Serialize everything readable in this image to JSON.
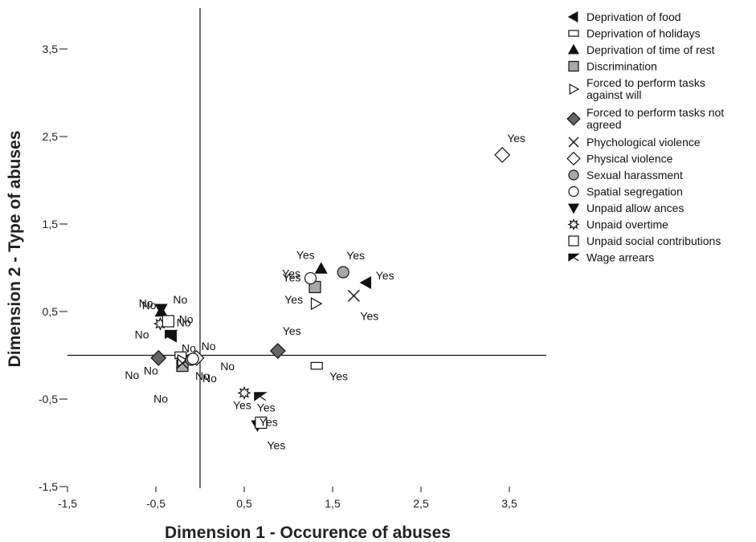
{
  "chart_data": {
    "type": "scatter",
    "xlabel": "Dimension 1 - Occurence of abuses",
    "ylabel": "Dimension 2 - Type of abuses",
    "xlim": [
      -1.5,
      4.0
    ],
    "ylim": [
      -1.5,
      4.0
    ],
    "x_ticks": [
      -1.5,
      -0.5,
      0.5,
      1.5,
      2.5,
      3.5
    ],
    "y_ticks": [
      -1.5,
      -0.5,
      0.5,
      1.5,
      2.5,
      3.5
    ],
    "x_tick_labels": [
      "-1,5",
      "-0,5",
      "0,5",
      "1,5",
      "2,5",
      "3,5"
    ],
    "y_tick_labels": [
      "-1,5",
      "-0,5",
      "0,5",
      "1,5",
      "2,5",
      "3,5"
    ],
    "legend_position": "right",
    "series": [
      {
        "name": "Deprivation of food",
        "marker": "tri-left",
        "fill": "#111111",
        "points": [
          {
            "label": "No",
            "x": -0.32,
            "y": 0.22
          },
          {
            "label": "Yes",
            "x": 1.88,
            "y": 0.83
          }
        ]
      },
      {
        "name": "Deprivation of holidays",
        "marker": "rect",
        "fill": "#ffffff",
        "points": [
          {
            "label": "No",
            "x": -0.22,
            "y": 0.0
          },
          {
            "label": "Yes",
            "x": 1.32,
            "y": -0.12
          }
        ]
      },
      {
        "name": "Deprivation of time of rest",
        "marker": "tri-up",
        "fill": "#111111",
        "points": [
          {
            "label": "No",
            "x": -0.44,
            "y": 0.5
          },
          {
            "label": "Yes",
            "x": 1.37,
            "y": 0.99
          }
        ]
      },
      {
        "name": "Discrimination",
        "marker": "square",
        "fill": "#a8a8a8",
        "points": [
          {
            "label": "No",
            "x": -0.2,
            "y": -0.12
          },
          {
            "label": "Yes",
            "x": 1.3,
            "y": 0.78
          }
        ]
      },
      {
        "name": "Forced to perform tasks against will",
        "marker": "tri-right",
        "fill": "#ffffff",
        "points": [
          {
            "label": "No",
            "x": -0.2,
            "y": -0.06
          },
          {
            "label": "Yes",
            "x": 1.31,
            "y": 0.59
          }
        ]
      },
      {
        "name": "Forced to perform tasks not agreed",
        "marker": "diamond",
        "fill": "#666666",
        "points": [
          {
            "label": "No",
            "x": -0.47,
            "y": -0.03
          },
          {
            "label": "Yes",
            "x": 0.88,
            "y": 0.05
          }
        ]
      },
      {
        "name": "Phychological violence",
        "marker": "x",
        "fill": "#111111",
        "points": [
          {
            "label": "No",
            "x": -0.2,
            "y": -0.09
          },
          {
            "label": "Yes",
            "x": 1.74,
            "y": 0.68
          }
        ]
      },
      {
        "name": "Physical violence",
        "marker": "diamond",
        "fill": "#ffffff",
        "points": [
          {
            "label": "No",
            "x": -0.04,
            "y": -0.03
          },
          {
            "label": "Yes",
            "x": 3.42,
            "y": 2.29
          }
        ]
      },
      {
        "name": "Sexual harassment",
        "marker": "circle",
        "fill": "#a8a8a8",
        "points": [
          {
            "label": "No",
            "x": -0.1,
            "y": -0.05
          },
          {
            "label": "Yes",
            "x": 1.62,
            "y": 0.95
          }
        ]
      },
      {
        "name": "Spatial segregation",
        "marker": "circle",
        "fill": "#ffffff",
        "points": [
          {
            "label": "No",
            "x": -0.08,
            "y": -0.04
          },
          {
            "label": "Yes",
            "x": 1.25,
            "y": 0.88
          }
        ]
      },
      {
        "name": "Unpaid allow ances",
        "marker": "tri-down",
        "fill": "#111111",
        "points": [
          {
            "label": "No",
            "x": -0.44,
            "y": 0.53
          },
          {
            "label": "Yes",
            "x": 0.65,
            "y": -0.8
          }
        ]
      },
      {
        "name": "Unpaid overtime",
        "marker": "star",
        "fill": "#ffffff",
        "points": [
          {
            "label": "No",
            "x": -0.45,
            "y": 0.36
          },
          {
            "label": "Yes",
            "x": 0.5,
            "y": -0.43
          }
        ]
      },
      {
        "name": "Unpaid social contributions",
        "marker": "square",
        "fill": "#ffffff",
        "points": [
          {
            "label": "No",
            "x": -0.36,
            "y": 0.39
          },
          {
            "label": "Yes",
            "x": 0.69,
            "y": -0.77
          }
        ]
      },
      {
        "name": "Wage arrears",
        "marker": "bowtie",
        "fill": "#111111",
        "points": [
          {
            "label": "No",
            "x": -0.33,
            "y": 0.24
          },
          {
            "label": "Yes",
            "x": 0.68,
            "y": -0.47
          }
        ]
      }
    ]
  }
}
